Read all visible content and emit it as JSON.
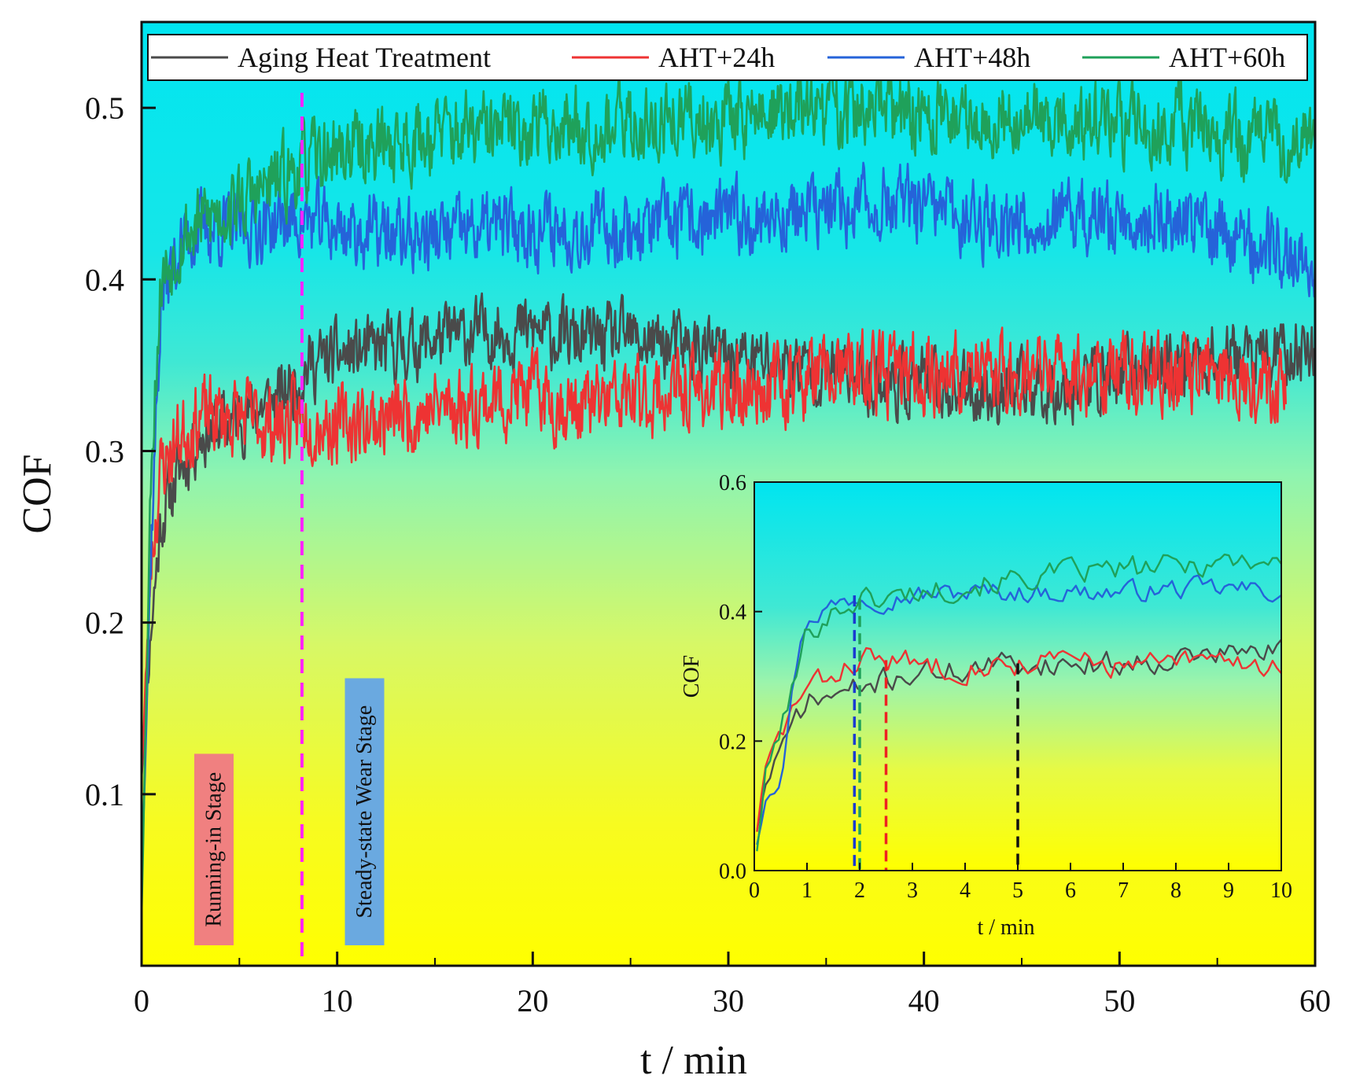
{
  "chart_data": [
    {
      "type": "line",
      "id": "main",
      "title": "",
      "xlabel": "t / min",
      "ylabel": "COF",
      "xlim": [
        0,
        60
      ],
      "ylim": [
        0,
        0.55
      ],
      "xticks": [
        0,
        10,
        20,
        30,
        40,
        50,
        60
      ],
      "yticks": [
        0.1,
        0.2,
        0.3,
        0.4,
        0.5
      ],
      "legend_position": "top",
      "series": [
        {
          "name": "Aging Heat Treatment",
          "color": "#4a4a4a",
          "points": [
            [
              0,
              0.11
            ],
            [
              0.5,
              0.2
            ],
            [
              1,
              0.26
            ],
            [
              2,
              0.29
            ],
            [
              3,
              0.31
            ],
            [
              5,
              0.32
            ],
            [
              7,
              0.33
            ],
            [
              8.5,
              0.35
            ],
            [
              10,
              0.355
            ],
            [
              13,
              0.36
            ],
            [
              15,
              0.365
            ],
            [
              18,
              0.37
            ],
            [
              20,
              0.37
            ],
            [
              22,
              0.365
            ],
            [
              25,
              0.365
            ],
            [
              28,
              0.36
            ],
            [
              30,
              0.355
            ],
            [
              33,
              0.35
            ],
            [
              36,
              0.345
            ],
            [
              38,
              0.34
            ],
            [
              40,
              0.34
            ],
            [
              42,
              0.335
            ],
            [
              45,
              0.335
            ],
            [
              48,
              0.34
            ],
            [
              50,
              0.345
            ],
            [
              52,
              0.35
            ],
            [
              55,
              0.355
            ],
            [
              58,
              0.355
            ],
            [
              60,
              0.36
            ]
          ],
          "noise": 0.012,
          "seed": 11
        },
        {
          "name": "AHT+24h",
          "color": "#ee3333",
          "points": [
            [
              0,
              0.11
            ],
            [
              0.5,
              0.24
            ],
            [
              1,
              0.29
            ],
            [
              2,
              0.31
            ],
            [
              3,
              0.32
            ],
            [
              5,
              0.32
            ],
            [
              7,
              0.315
            ],
            [
              8.5,
              0.32
            ],
            [
              10,
              0.315
            ],
            [
              13,
              0.32
            ],
            [
              15,
              0.325
            ],
            [
              18,
              0.33
            ],
            [
              20,
              0.335
            ],
            [
              22,
              0.325
            ],
            [
              25,
              0.33
            ],
            [
              28,
              0.335
            ],
            [
              30,
              0.335
            ],
            [
              33,
              0.34
            ],
            [
              36,
              0.345
            ],
            [
              40,
              0.345
            ],
            [
              45,
              0.345
            ],
            [
              50,
              0.345
            ],
            [
              55,
              0.345
            ],
            [
              58.5,
              0.34
            ]
          ],
          "noise": 0.014,
          "seed": 23
        },
        {
          "name": "AHT+48h",
          "color": "#2563d9",
          "points": [
            [
              0,
              0.05
            ],
            [
              0.5,
              0.25
            ],
            [
              1,
              0.39
            ],
            [
              2,
              0.42
            ],
            [
              3,
              0.43
            ],
            [
              5,
              0.43
            ],
            [
              8,
              0.435
            ],
            [
              10,
              0.43
            ],
            [
              13,
              0.425
            ],
            [
              15,
              0.425
            ],
            [
              18,
              0.43
            ],
            [
              20,
              0.43
            ],
            [
              25,
              0.43
            ],
            [
              30,
              0.435
            ],
            [
              35,
              0.44
            ],
            [
              38,
              0.445
            ],
            [
              40,
              0.44
            ],
            [
              43,
              0.435
            ],
            [
              45,
              0.435
            ],
            [
              48,
              0.435
            ],
            [
              50,
              0.435
            ],
            [
              53,
              0.435
            ],
            [
              55,
              0.43
            ],
            [
              57,
              0.42
            ],
            [
              60,
              0.41
            ]
          ],
          "noise": 0.013,
          "seed": 37
        },
        {
          "name": "AHT+60h",
          "color": "#1fa15a",
          "points": [
            [
              0,
              0.03
            ],
            [
              0.5,
              0.3
            ],
            [
              1,
              0.4
            ],
            [
              2,
              0.425
            ],
            [
              4,
              0.44
            ],
            [
              6,
              0.45
            ],
            [
              8,
              0.465
            ],
            [
              10,
              0.475
            ],
            [
              13,
              0.48
            ],
            [
              15,
              0.485
            ],
            [
              18,
              0.485
            ],
            [
              20,
              0.49
            ],
            [
              25,
              0.49
            ],
            [
              30,
              0.495
            ],
            [
              35,
              0.5
            ],
            [
              40,
              0.495
            ],
            [
              45,
              0.495
            ],
            [
              48,
              0.49
            ],
            [
              50,
              0.49
            ],
            [
              53,
              0.49
            ],
            [
              55,
              0.485
            ],
            [
              57,
              0.48
            ],
            [
              60,
              0.48
            ]
          ],
          "noise": 0.014,
          "seed": 53
        }
      ],
      "annotations": [
        {
          "text": "Running-in Stage",
          "x": 3.7,
          "color": "#f08080"
        },
        {
          "text": "Steady-state Wear Stage",
          "x": 11.4,
          "color": "#6aa9e0"
        }
      ],
      "stage_divider": {
        "x": 8.2,
        "color": "#ff22ff"
      }
    },
    {
      "type": "line",
      "id": "inset",
      "title": "",
      "xlabel": "t / min",
      "ylabel": "COF",
      "xlim": [
        0,
        10
      ],
      "ylim": [
        0,
        0.6
      ],
      "xticks": [
        0,
        1,
        2,
        3,
        4,
        5,
        6,
        7,
        8,
        9,
        10
      ],
      "yticks": [
        0.0,
        0.2,
        0.4,
        0.6
      ],
      "ytick_labels": [
        "0.0",
        "0.2",
        "0.4",
        "0.6"
      ],
      "series": [
        {
          "name": "Aging Heat Treatment",
          "color": "#4a4a4a",
          "points": [
            [
              0.05,
              0.06
            ],
            [
              0.2,
              0.13
            ],
            [
              0.4,
              0.17
            ],
            [
              0.6,
              0.19
            ],
            [
              0.8,
              0.24
            ],
            [
              1,
              0.26
            ],
            [
              1.5,
              0.27
            ],
            [
              2,
              0.28
            ],
            [
              2.5,
              0.295
            ],
            [
              3,
              0.305
            ],
            [
              4,
              0.31
            ],
            [
              5,
              0.32
            ],
            [
              6,
              0.32
            ],
            [
              7,
              0.32
            ],
            [
              8,
              0.33
            ],
            [
              9,
              0.335
            ],
            [
              10,
              0.34
            ]
          ],
          "noise": 0.012,
          "seed": 71
        },
        {
          "name": "AHT+24h",
          "color": "#ee3333",
          "points": [
            [
              0.05,
              0.06
            ],
            [
              0.2,
              0.15
            ],
            [
              0.5,
              0.21
            ],
            [
              0.8,
              0.26
            ],
            [
              1,
              0.28
            ],
            [
              1.5,
              0.3
            ],
            [
              2,
              0.33
            ],
            [
              2.5,
              0.325
            ],
            [
              3,
              0.32
            ],
            [
              4,
              0.315
            ],
            [
              5,
              0.32
            ],
            [
              6,
              0.325
            ],
            [
              7,
              0.315
            ],
            [
              8,
              0.32
            ],
            [
              9,
              0.325
            ],
            [
              10,
              0.315
            ]
          ],
          "noise": 0.012,
          "seed": 83
        },
        {
          "name": "AHT+48h",
          "color": "#2563d9",
          "points": [
            [
              0.05,
              0.04
            ],
            [
              0.2,
              0.12
            ],
            [
              0.5,
              0.15
            ],
            [
              0.8,
              0.32
            ],
            [
              1,
              0.39
            ],
            [
              1.5,
              0.41
            ],
            [
              2,
              0.425
            ],
            [
              2.5,
              0.42
            ],
            [
              3,
              0.425
            ],
            [
              4,
              0.43
            ],
            [
              5,
              0.43
            ],
            [
              6,
              0.43
            ],
            [
              7,
              0.43
            ],
            [
              8,
              0.435
            ],
            [
              9,
              0.435
            ],
            [
              10,
              0.43
            ]
          ],
          "noise": 0.01,
          "seed": 97
        },
        {
          "name": "AHT+60h",
          "color": "#1fa15a",
          "points": [
            [
              0.05,
              0.03
            ],
            [
              0.2,
              0.14
            ],
            [
              0.5,
              0.22
            ],
            [
              0.8,
              0.3
            ],
            [
              1,
              0.37
            ],
            [
              1.5,
              0.4
            ],
            [
              2,
              0.42
            ],
            [
              2.5,
              0.42
            ],
            [
              3,
              0.43
            ],
            [
              4,
              0.44
            ],
            [
              5,
              0.45
            ],
            [
              6,
              0.46
            ],
            [
              7,
              0.465
            ],
            [
              8,
              0.47
            ],
            [
              9,
              0.48
            ],
            [
              10,
              0.48
            ]
          ],
          "noise": 0.012,
          "seed": 101
        }
      ],
      "markers": [
        {
          "x": 1.9,
          "color": "#1a3ad0"
        },
        {
          "x": 2.0,
          "color": "#1fa15a"
        },
        {
          "x": 2.5,
          "color": "#ee2222"
        },
        {
          "x": 5.0,
          "color": "#111111"
        }
      ]
    }
  ]
}
